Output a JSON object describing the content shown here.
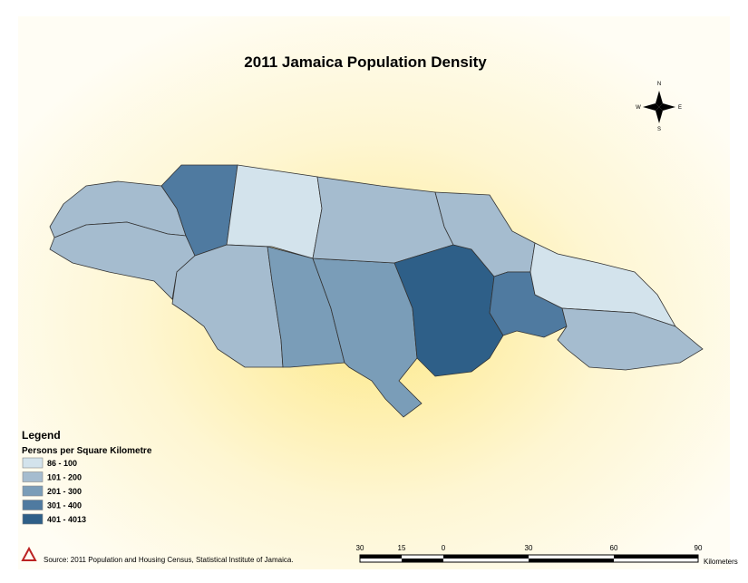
{
  "title": "2011 Jamaica Population Density",
  "compass": {
    "n": "N",
    "e": "E",
    "s": "S",
    "w": "W"
  },
  "legend": {
    "title": "Legend",
    "subtitle": "Persons per Square Kilometre",
    "items": [
      {
        "label": "86 - 100",
        "color": "#d3e3ec"
      },
      {
        "label": "101 - 200",
        "color": "#a5bccf"
      },
      {
        "label": "201 - 300",
        "color": "#7a9db8"
      },
      {
        "label": "301 - 400",
        "color": "#4f7aa0"
      },
      {
        "label": "401 - 4013",
        "color": "#2e5f88"
      }
    ]
  },
  "scale_bar": {
    "labels": [
      "30",
      "15",
      "0",
      "30",
      "60",
      "90"
    ],
    "unit": "Kilometers"
  },
  "source": "Source: 2011 Population and Housing Census, Statistical Institute of Jamaica."
}
